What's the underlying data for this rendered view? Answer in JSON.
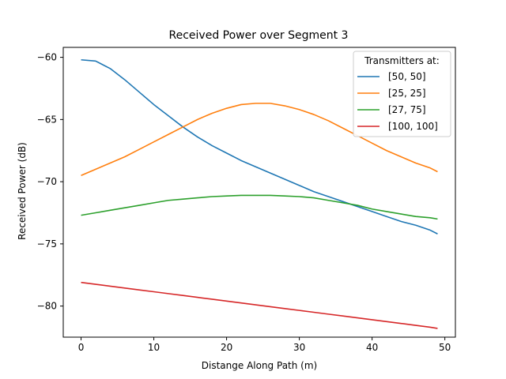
{
  "chart_data": {
    "type": "line",
    "title": "Received Power over Segment 3",
    "xlabel": "Distange Along Path (m)",
    "ylabel": "Received Power (dB)",
    "xlim": [
      -2.45,
      51.45
    ],
    "ylim": [
      -82.5,
      -59.2
    ],
    "xticks": [
      0,
      10,
      20,
      30,
      40,
      50
    ],
    "xtick_labels": [
      "0",
      "10",
      "20",
      "30",
      "40",
      "50"
    ],
    "yticks": [
      -60,
      -65,
      -70,
      -75,
      -80
    ],
    "ytick_labels": [
      "−60",
      "−65",
      "−70",
      "−75",
      "−80"
    ],
    "grid": false,
    "legend": {
      "title": "Transmitters at:",
      "location": "upper right"
    },
    "x": [
      0,
      2,
      4,
      6,
      8,
      10,
      12,
      14,
      16,
      18,
      20,
      22,
      24,
      26,
      28,
      30,
      32,
      34,
      36,
      38,
      40,
      42,
      44,
      46,
      48,
      49
    ],
    "series": [
      {
        "name": "[50, 50]",
        "color": "#1f77b4",
        "values": [
          -60.2,
          -60.3,
          -60.9,
          -61.8,
          -62.8,
          -63.8,
          -64.7,
          -65.6,
          -66.4,
          -67.1,
          -67.7,
          -68.3,
          -68.8,
          -69.3,
          -69.8,
          -70.3,
          -70.8,
          -71.2,
          -71.6,
          -72.0,
          -72.4,
          -72.8,
          -73.2,
          -73.5,
          -73.9,
          -74.2
        ]
      },
      {
        "name": "[25, 25]",
        "color": "#ff7f0e",
        "values": [
          -69.5,
          -69.0,
          -68.5,
          -68.0,
          -67.4,
          -66.8,
          -66.2,
          -65.6,
          -65.0,
          -64.5,
          -64.1,
          -63.8,
          -63.7,
          -63.7,
          -63.9,
          -64.2,
          -64.6,
          -65.1,
          -65.7,
          -66.3,
          -66.9,
          -67.5,
          -68.0,
          -68.5,
          -68.9,
          -69.2
        ]
      },
      {
        "name": "[27, 75]",
        "color": "#2ca02c",
        "values": [
          -72.7,
          -72.5,
          -72.3,
          -72.1,
          -71.9,
          -71.7,
          -71.5,
          -71.4,
          -71.3,
          -71.2,
          -71.15,
          -71.1,
          -71.1,
          -71.1,
          -71.15,
          -71.2,
          -71.3,
          -71.5,
          -71.7,
          -71.9,
          -72.2,
          -72.4,
          -72.6,
          -72.8,
          -72.9,
          -73.0
        ]
      },
      {
        "name": "[100, 100]",
        "color": "#d62728",
        "values": [
          -78.1,
          -78.25,
          -78.4,
          -78.55,
          -78.7,
          -78.85,
          -79.0,
          -79.15,
          -79.3,
          -79.45,
          -79.6,
          -79.75,
          -79.9,
          -80.05,
          -80.2,
          -80.35,
          -80.5,
          -80.65,
          -80.8,
          -80.95,
          -81.1,
          -81.25,
          -81.4,
          -81.55,
          -81.7,
          -81.8
        ]
      }
    ]
  }
}
